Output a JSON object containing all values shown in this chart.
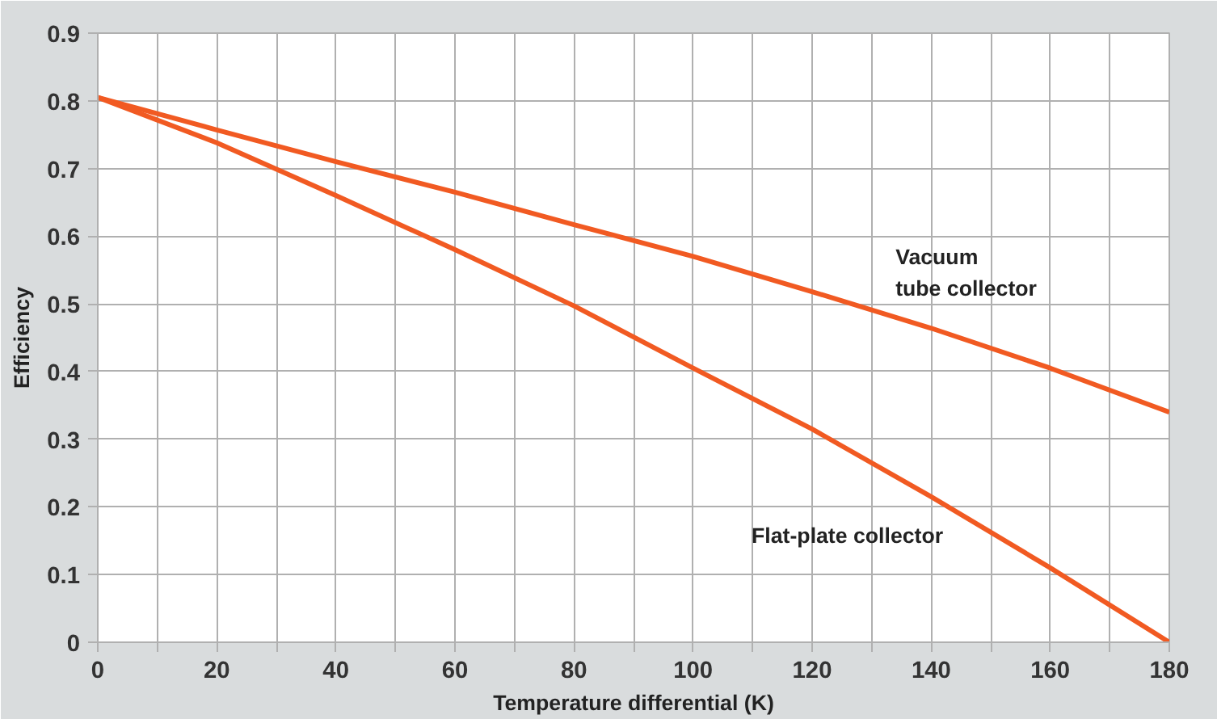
{
  "chart_data": {
    "type": "line",
    "xlabel": "Temperature differential (K)",
    "ylabel": "Efficiency",
    "x": [
      0,
      20,
      40,
      60,
      80,
      100,
      120,
      140,
      160,
      180
    ],
    "series": [
      {
        "name": "Vacuum tube collector",
        "color": "#f15a22",
        "values": [
          0.805,
          0.757,
          0.71,
          0.665,
          0.617,
          0.57,
          0.518,
          0.464,
          0.405,
          0.34
        ]
      },
      {
        "name": "Flat-plate collector",
        "color": "#f15a22",
        "values": [
          0.805,
          0.738,
          0.66,
          0.58,
          0.497,
          0.405,
          0.315,
          0.215,
          0.11,
          0.0
        ]
      }
    ],
    "xlim": [
      0,
      180
    ],
    "ylim": [
      0,
      0.9
    ],
    "xticks": [
      0,
      {
        "value": 10,
        "label": null
      },
      20,
      {
        "value": 30,
        "label": null
      },
      40,
      {
        "value": 50,
        "label": null
      },
      60,
      {
        "value": 70,
        "label": null
      },
      80,
      {
        "value": 90,
        "label": null
      },
      100,
      {
        "value": 110,
        "label": null
      },
      120,
      {
        "value": 130,
        "label": null
      },
      140,
      {
        "value": 150,
        "label": null
      },
      160,
      {
        "value": 170,
        "label": null
      },
      180
    ],
    "yticks": [
      0,
      0.1,
      0.2,
      0.3,
      0.4,
      0.5,
      0.6,
      0.7,
      0.8,
      0.9
    ],
    "grid": true,
    "legend": false,
    "marker": "none",
    "line_style": "solid"
  }
}
